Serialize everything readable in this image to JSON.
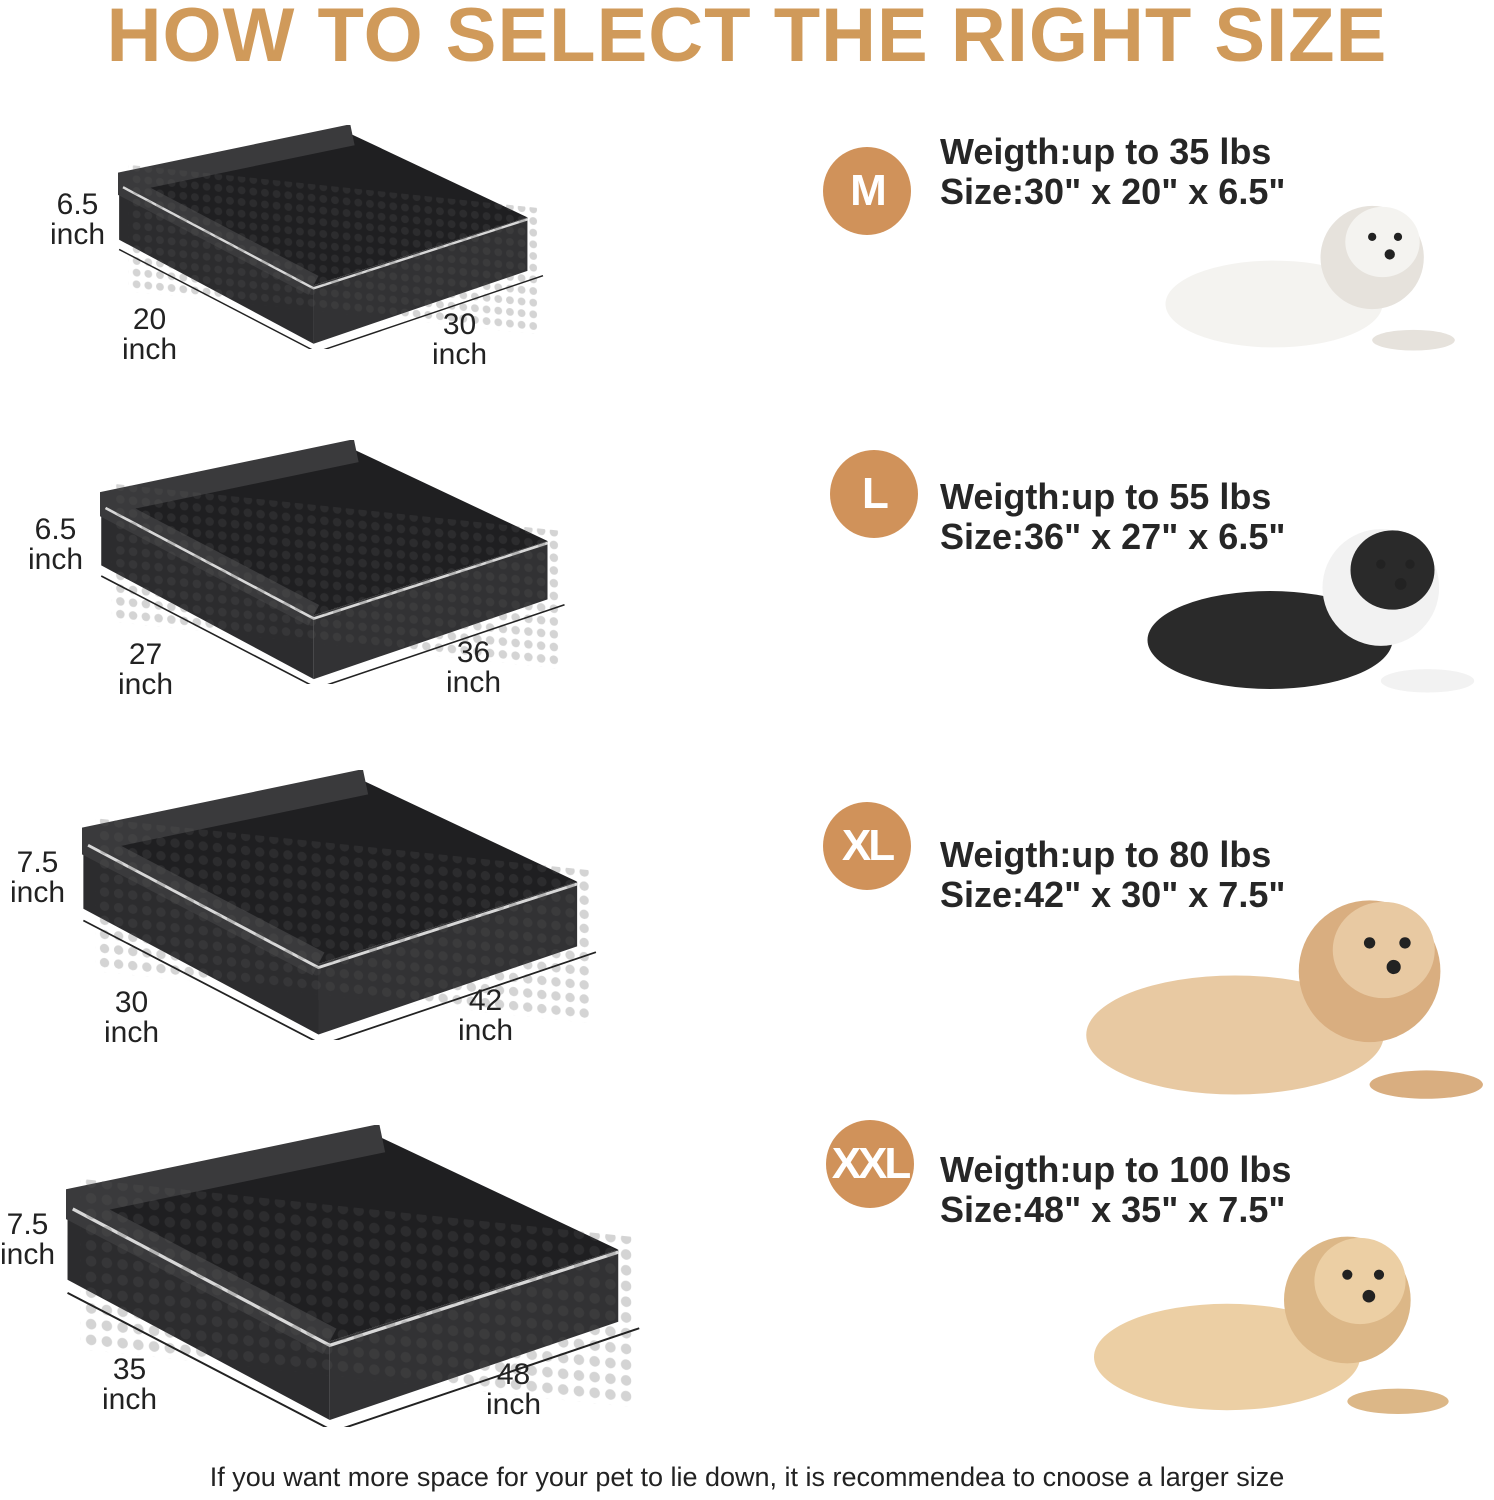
{
  "title": "HOW TO SELECT THE RIGHT SIZE",
  "accent_color": "#d0925a",
  "title_color": "#d09a5a",
  "sizes": [
    {
      "badge": "M",
      "weight": "Weigth:up to 35 lbs",
      "size": "Size:30\" x 20\" x 6.5\"",
      "height_val": "6.5",
      "depth_val": "20",
      "width_val": "30",
      "unit": "inch",
      "dog": "bichon-white"
    },
    {
      "badge": "L",
      "weight": "Weigth:up to 55 lbs",
      "size": "Size:36\" x 27\" x 6.5\"",
      "height_val": "6.5",
      "depth_val": "27",
      "width_val": "36",
      "unit": "inch",
      "dog": "husky"
    },
    {
      "badge": "XL",
      "weight": "Weigth:up to 80 lbs",
      "size": "Size:42\" x 30\" x 7.5\"",
      "height_val": "7.5",
      "depth_val": "30",
      "width_val": "42",
      "unit": "inch",
      "dog": "golden-retriever"
    },
    {
      "badge": "XXL",
      "weight": "Weigth:up to 100 lbs",
      "size": "Size:48\" x 35\" x 7.5\"",
      "height_val": "7.5",
      "depth_val": "35",
      "width_val": "48",
      "unit": "inch",
      "dog": "labrador"
    }
  ],
  "footer": "If you want more space for your pet to lie down, it is recommendea to cnoose a larger size"
}
